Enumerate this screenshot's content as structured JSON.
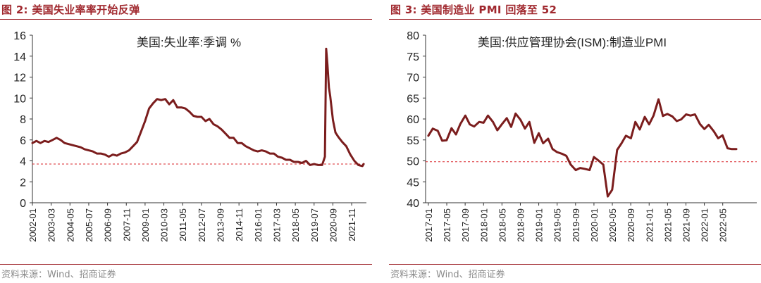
{
  "charts": [
    {
      "figure_title": "图 2: 美国失业率率开始反弹",
      "source": "资料来源：Wind、招商证券",
      "line_color": "#7b1d1d",
      "ref_color": "#d9262b",
      "chart_data": {
        "type": "line",
        "title": "美国:失业率:季调 %",
        "ylim": [
          0,
          16
        ],
        "yticks": [
          0,
          2,
          4,
          6,
          8,
          10,
          12,
          14,
          16
        ],
        "xlim": [
          2002.0,
          2022.75
        ],
        "xticks": [
          "2002-01",
          "2003-03",
          "2004-05",
          "2005-07",
          "2006-09",
          "2007-11",
          "2009-01",
          "2010-03",
          "2011-05",
          "2012-07",
          "2013-09",
          "2014-11",
          "2016-01",
          "2017-03",
          "2018-05",
          "2019-07",
          "2020-09",
          "2021-11"
        ],
        "reference_line": 3.7,
        "grid": false,
        "series": [
          {
            "values": [
              [
                2002.0,
                5.7
              ],
              [
                2002.25,
                5.9
              ],
              [
                2002.5,
                5.7
              ],
              [
                2002.75,
                5.9
              ],
              [
                2003.0,
                5.8
              ],
              [
                2003.25,
                6.0
              ],
              [
                2003.5,
                6.2
              ],
              [
                2003.75,
                6.0
              ],
              [
                2004.0,
                5.7
              ],
              [
                2004.25,
                5.6
              ],
              [
                2004.5,
                5.5
              ],
              [
                2004.75,
                5.4
              ],
              [
                2005.0,
                5.3
              ],
              [
                2005.25,
                5.1
              ],
              [
                2005.5,
                5.0
              ],
              [
                2005.75,
                4.9
              ],
              [
                2006.0,
                4.7
              ],
              [
                2006.25,
                4.7
              ],
              [
                2006.5,
                4.6
              ],
              [
                2006.75,
                4.4
              ],
              [
                2007.0,
                4.6
              ],
              [
                2007.25,
                4.5
              ],
              [
                2007.5,
                4.7
              ],
              [
                2007.75,
                4.8
              ],
              [
                2008.0,
                5.0
              ],
              [
                2008.25,
                5.4
              ],
              [
                2008.5,
                5.8
              ],
              [
                2008.75,
                6.8
              ],
              [
                2009.0,
                7.8
              ],
              [
                2009.25,
                9.0
              ],
              [
                2009.5,
                9.5
              ],
              [
                2009.75,
                9.9
              ],
              [
                2010.0,
                9.8
              ],
              [
                2010.25,
                9.9
              ],
              [
                2010.5,
                9.4
              ],
              [
                2010.75,
                9.8
              ],
              [
                2011.0,
                9.1
              ],
              [
                2011.25,
                9.1
              ],
              [
                2011.5,
                9.0
              ],
              [
                2011.75,
                8.7
              ],
              [
                2012.0,
                8.3
              ],
              [
                2012.25,
                8.2
              ],
              [
                2012.5,
                8.2
              ],
              [
                2012.75,
                7.8
              ],
              [
                2013.0,
                8.0
              ],
              [
                2013.25,
                7.5
              ],
              [
                2013.5,
                7.3
              ],
              [
                2013.75,
                7.0
              ],
              [
                2014.0,
                6.6
              ],
              [
                2014.25,
                6.2
              ],
              [
                2014.5,
                6.2
              ],
              [
                2014.75,
                5.7
              ],
              [
                2015.0,
                5.7
              ],
              [
                2015.25,
                5.4
              ],
              [
                2015.5,
                5.2
              ],
              [
                2015.75,
                5.0
              ],
              [
                2016.0,
                4.9
              ],
              [
                2016.25,
                5.0
              ],
              [
                2016.5,
                4.9
              ],
              [
                2016.75,
                4.7
              ],
              [
                2017.0,
                4.7
              ],
              [
                2017.25,
                4.4
              ],
              [
                2017.5,
                4.3
              ],
              [
                2017.75,
                4.1
              ],
              [
                2018.0,
                4.1
              ],
              [
                2018.25,
                3.9
              ],
              [
                2018.5,
                3.9
              ],
              [
                2018.75,
                3.8
              ],
              [
                2019.0,
                4.0
              ],
              [
                2019.25,
                3.6
              ],
              [
                2019.5,
                3.7
              ],
              [
                2019.75,
                3.6
              ],
              [
                2020.0,
                3.6
              ],
              [
                2020.17,
                4.4
              ],
              [
                2020.25,
                14.7
              ],
              [
                2020.33,
                13.2
              ],
              [
                2020.42,
                11.0
              ],
              [
                2020.5,
                10.2
              ],
              [
                2020.67,
                7.9
              ],
              [
                2020.83,
                6.7
              ],
              [
                2021.0,
                6.3
              ],
              [
                2021.25,
                5.8
              ],
              [
                2021.5,
                5.4
              ],
              [
                2021.75,
                4.6
              ],
              [
                2022.0,
                4.0
              ],
              [
                2022.25,
                3.6
              ],
              [
                2022.5,
                3.5
              ],
              [
                2022.58,
                3.7
              ]
            ]
          }
        ]
      }
    },
    {
      "figure_title": "图 3: 美国制造业 PMI 回落至 52",
      "source": "资料来源：Wind、招商证券",
      "line_color": "#7b1d1d",
      "ref_color": "#d9262b",
      "chart_data": {
        "type": "line",
        "title": "美国:供应管理协会(ISM):制造业PMI",
        "ylim": [
          40,
          80
        ],
        "yticks": [
          40,
          45,
          50,
          55,
          60,
          65,
          70,
          75,
          80
        ],
        "xlim": [
          2016.95,
          2022.95
        ],
        "xticks": [
          "2017-01",
          "2017-05",
          "2017-09",
          "2018-01",
          "2018-05",
          "2018-09",
          "2019-01",
          "2019-05",
          "2019-09",
          "2020-01",
          "2020-05",
          "2020-09",
          "2021-01",
          "2021-05",
          "2021-09",
          "2022-01",
          "2022-05"
        ],
        "reference_line": 49.8,
        "grid": false,
        "series": [
          {
            "values": [
              [
                2017.0,
                56.0
              ],
              [
                2017.08,
                57.7
              ],
              [
                2017.17,
                57.2
              ],
              [
                2017.25,
                54.8
              ],
              [
                2017.33,
                54.9
              ],
              [
                2017.42,
                57.8
              ],
              [
                2017.5,
                56.3
              ],
              [
                2017.58,
                58.8
              ],
              [
                2017.67,
                60.8
              ],
              [
                2017.75,
                58.7
              ],
              [
                2017.83,
                58.2
              ],
              [
                2017.92,
                59.3
              ],
              [
                2018.0,
                59.1
              ],
              [
                2018.08,
                60.8
              ],
              [
                2018.17,
                59.3
              ],
              [
                2018.25,
                57.3
              ],
              [
                2018.33,
                58.7
              ],
              [
                2018.42,
                60.2
              ],
              [
                2018.5,
                58.1
              ],
              [
                2018.58,
                61.3
              ],
              [
                2018.67,
                59.8
              ],
              [
                2018.75,
                57.7
              ],
              [
                2018.83,
                59.3
              ],
              [
                2018.92,
                54.3
              ],
              [
                2019.0,
                56.6
              ],
              [
                2019.08,
                54.2
              ],
              [
                2019.17,
                55.3
              ],
              [
                2019.25,
                52.8
              ],
              [
                2019.33,
                52.1
              ],
              [
                2019.42,
                51.7
              ],
              [
                2019.5,
                51.2
              ],
              [
                2019.58,
                49.1
              ],
              [
                2019.67,
                47.8
              ],
              [
                2019.75,
                48.3
              ],
              [
                2019.83,
                48.1
              ],
              [
                2019.92,
                47.8
              ],
              [
                2020.0,
                50.9
              ],
              [
                2020.08,
                50.1
              ],
              [
                2020.17,
                49.1
              ],
              [
                2020.25,
                41.5
              ],
              [
                2020.33,
                43.1
              ],
              [
                2020.42,
                52.6
              ],
              [
                2020.5,
                54.2
              ],
              [
                2020.58,
                56.0
              ],
              [
                2020.67,
                55.4
              ],
              [
                2020.75,
                59.3
              ],
              [
                2020.83,
                57.5
              ],
              [
                2020.92,
                60.5
              ],
              [
                2021.0,
                58.7
              ],
              [
                2021.08,
                60.8
              ],
              [
                2021.17,
                64.7
              ],
              [
                2021.25,
                60.7
              ],
              [
                2021.33,
                61.2
              ],
              [
                2021.42,
                60.6
              ],
              [
                2021.5,
                59.5
              ],
              [
                2021.58,
                59.9
              ],
              [
                2021.67,
                61.1
              ],
              [
                2021.75,
                60.8
              ],
              [
                2021.83,
                61.1
              ],
              [
                2021.92,
                58.8
              ],
              [
                2022.0,
                57.6
              ],
              [
                2022.08,
                58.6
              ],
              [
                2022.17,
                57.1
              ],
              [
                2022.25,
                55.4
              ],
              [
                2022.33,
                56.1
              ],
              [
                2022.42,
                53.0
              ],
              [
                2022.5,
                52.8
              ],
              [
                2022.58,
                52.8
              ]
            ]
          }
        ]
      }
    }
  ]
}
